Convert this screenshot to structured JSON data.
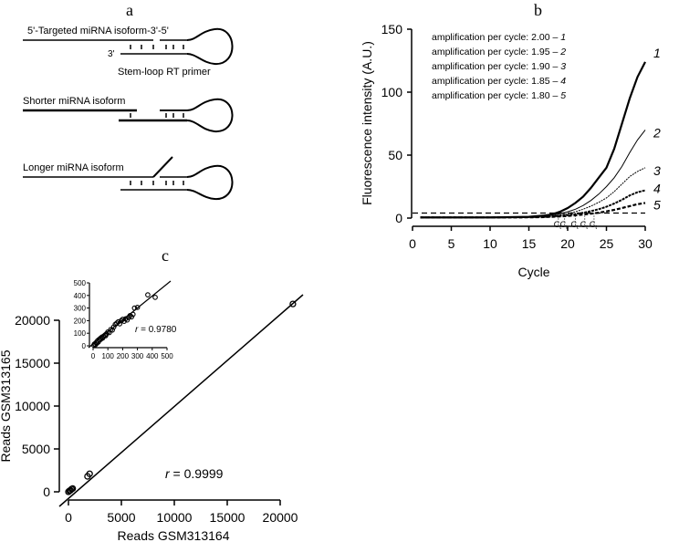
{
  "panel_a": {
    "label": "a",
    "top_label": "5'-Targeted miRNA isoform-3'-5'",
    "three_prime": "3'",
    "primer_label": "Stem-loop RT primer",
    "shorter_label": "Shorter miRNA isoform",
    "longer_label": "Longer miRNA isoform"
  },
  "chart_data": [
    {
      "panel": "b",
      "type": "line",
      "xlabel": "Cycle",
      "ylabel": "Fluorescence intensity (A.U.)",
      "xlim": [
        0,
        30
      ],
      "ylim": [
        0,
        150
      ],
      "xticks": [
        0,
        5,
        10,
        15,
        20,
        25,
        30
      ],
      "yticks": [
        0,
        50,
        100,
        150
      ],
      "threshold": 4,
      "ct_label": "C",
      "ct_sub": "t",
      "ct_values": [
        18.8,
        19.6,
        21.0,
        22.2,
        23.4
      ],
      "legend": [
        {
          "text": "amplification per cycle: 2.00 – ",
          "id": "1"
        },
        {
          "text": "amplification per cycle: 1.95 – ",
          "id": "2"
        },
        {
          "text": "amplification per cycle: 1.90 – ",
          "id": "3"
        },
        {
          "text": "amplification per cycle: 1.85 – ",
          "id": "4"
        },
        {
          "text": "amplification per cycle: 1.80 – ",
          "id": "5"
        }
      ],
      "x": [
        1,
        5,
        10,
        15,
        17,
        18,
        19,
        20,
        21,
        22,
        23,
        24,
        25,
        26,
        27,
        28,
        29,
        30
      ],
      "series": [
        {
          "name": "1",
          "values": [
            0.5,
            0.5,
            0.5,
            1,
            2,
            3,
            5,
            8,
            12,
            17,
            24,
            32,
            40,
            55,
            75,
            95,
            112,
            124
          ]
        },
        {
          "name": "2",
          "values": [
            0.5,
            0.5,
            0.5,
            1,
            1.5,
            2.5,
            3.5,
            5,
            7,
            10,
            14,
            19,
            25,
            32,
            41,
            52,
            62,
            70
          ]
        },
        {
          "name": "3",
          "values": [
            0.5,
            0.5,
            0.5,
            0.8,
            1.2,
            1.8,
            2.5,
            3.5,
            5,
            7,
            9.5,
            12.5,
            16,
            21,
            27,
            33,
            37,
            40
          ]
        },
        {
          "name": "4",
          "values": [
            0.5,
            0.5,
            0.5,
            0.7,
            1,
            1.3,
            1.8,
            2.4,
            3.2,
            4.2,
            5.5,
            7,
            9,
            11.5,
            14.5,
            18,
            20.5,
            22
          ]
        },
        {
          "name": "5",
          "values": [
            0.5,
            0.5,
            0.5,
            0.6,
            0.8,
            1,
            1.3,
            1.7,
            2.2,
            2.8,
            3.5,
            4.3,
            5.3,
            6.5,
            8,
            9.5,
            11,
            12
          ]
        }
      ]
    },
    {
      "panel": "c",
      "type": "scatter",
      "xlabel": "Reads GSM313164",
      "ylabel": "Reads GSM313165",
      "xlim": [
        0,
        20000
      ],
      "ylim": [
        0,
        20000
      ],
      "xticks": [
        0,
        5000,
        10000,
        15000,
        20000
      ],
      "yticks": [
        0,
        5000,
        10000,
        15000,
        20000
      ],
      "annotation": {
        "r": "r",
        "text": " = 0.9999"
      },
      "points": [
        [
          0,
          0
        ],
        [
          100,
          120
        ],
        [
          200,
          180
        ],
        [
          300,
          320
        ],
        [
          400,
          380
        ],
        [
          1800,
          1800
        ],
        [
          2000,
          2100
        ],
        [
          21200,
          21900
        ]
      ],
      "inset": {
        "xlim": [
          0,
          500
        ],
        "ylim": [
          0,
          500
        ],
        "xticks": [
          0,
          100,
          200,
          300,
          400,
          500
        ],
        "yticks": [
          0,
          100,
          200,
          300,
          400,
          500
        ],
        "annotation": {
          "r": "r",
          "text": " = 0.9780"
        },
        "points": [
          [
            5,
            5
          ],
          [
            10,
            15
          ],
          [
            15,
            8
          ],
          [
            20,
            25
          ],
          [
            25,
            20
          ],
          [
            30,
            40
          ],
          [
            35,
            30
          ],
          [
            40,
            50
          ],
          [
            45,
            45
          ],
          [
            50,
            60
          ],
          [
            55,
            55
          ],
          [
            60,
            70
          ],
          [
            65,
            62
          ],
          [
            70,
            75
          ],
          [
            80,
            85
          ],
          [
            85,
            80
          ],
          [
            90,
            95
          ],
          [
            100,
            110
          ],
          [
            110,
            105
          ],
          [
            120,
            130
          ],
          [
            130,
            125
          ],
          [
            140,
            150
          ],
          [
            150,
            170
          ],
          [
            160,
            180
          ],
          [
            170,
            190
          ],
          [
            180,
            175
          ],
          [
            190,
            200
          ],
          [
            200,
            210
          ],
          [
            210,
            195
          ],
          [
            220,
            215
          ],
          [
            230,
            205
          ],
          [
            240,
            225
          ],
          [
            250,
            240
          ],
          [
            260,
            230
          ],
          [
            270,
            250
          ],
          [
            280,
            300
          ],
          [
            300,
            305
          ],
          [
            370,
            405
          ],
          [
            420,
            385
          ]
        ]
      }
    }
  ]
}
